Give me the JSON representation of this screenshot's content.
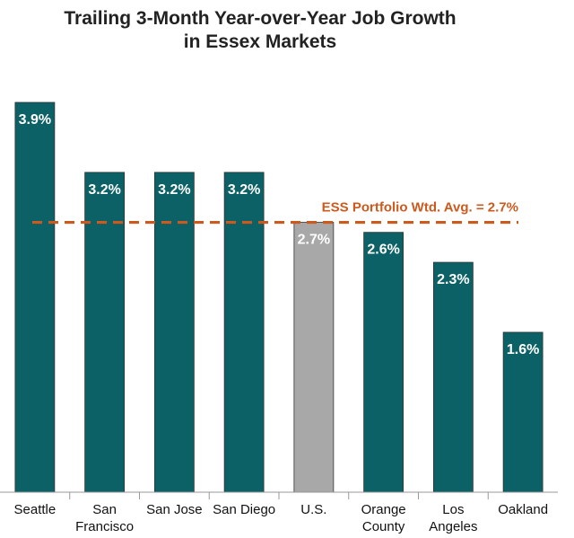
{
  "chart_data": {
    "type": "bar",
    "title_line1": "Trailing 3-Month Year-over-Year Job Growth",
    "title_line2": "in Essex Markets",
    "categories": [
      [
        "Seattle"
      ],
      [
        "San",
        "Francisco"
      ],
      [
        "San Jose"
      ],
      [
        "San Diego"
      ],
      [
        "U.S."
      ],
      [
        "Orange",
        "County"
      ],
      [
        "Los",
        "Angeles"
      ],
      [
        "Oakland"
      ]
    ],
    "values": [
      3.9,
      3.2,
      3.2,
      3.2,
      2.7,
      2.6,
      2.3,
      1.6
    ],
    "value_labels": [
      "3.9%",
      "3.2%",
      "3.2%",
      "3.2%",
      "2.7%",
      "2.6%",
      "2.3%",
      "1.6%"
    ],
    "highlight_index": 4,
    "reference_line": {
      "value": 2.7,
      "label": "ESS Portfolio Wtd. Avg. = 2.7%"
    },
    "ylim": [
      0,
      3.9
    ],
    "colors": {
      "bar": "#0b6166",
      "highlight_bar": "#a8a8a8",
      "reference": "#cc5a1e",
      "axis": "#999999"
    },
    "grid": false,
    "legend": "none"
  }
}
